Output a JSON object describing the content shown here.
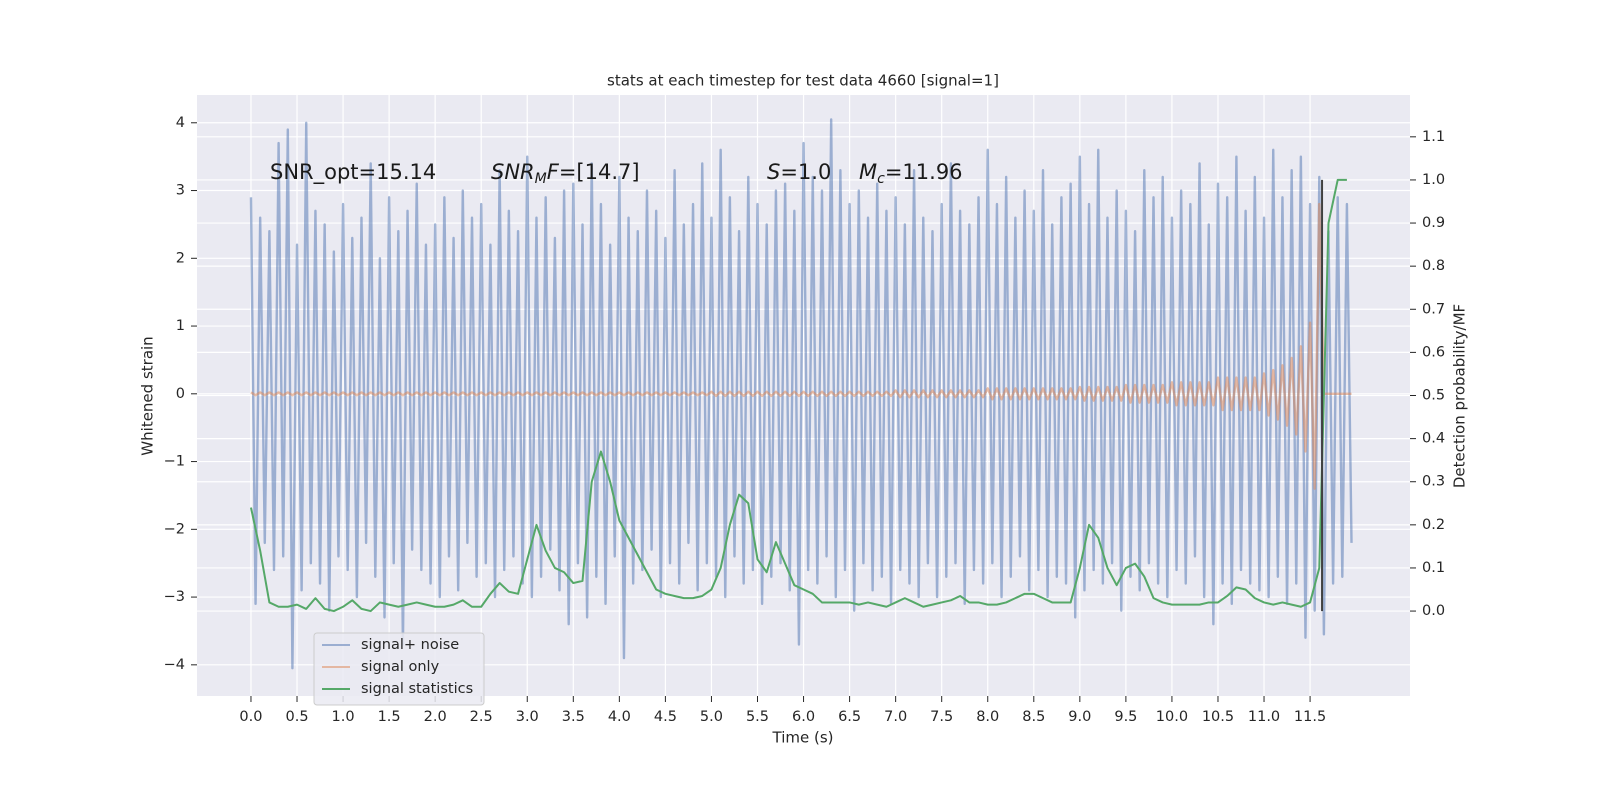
{
  "chart_data": {
    "type": "line",
    "title": "stats at each timestep for test data 4660 [signal=1]",
    "x_label": "Time (s)",
    "y_label": "Whitened strain",
    "y2_label": "Detection probability/MF",
    "xlim": [
      -0.586,
      12.585
    ],
    "ylim": [
      -4.46,
      4.41
    ],
    "y2lim": [
      -0.197,
      1.197
    ],
    "xticks": [
      {
        "value": 0,
        "label": "0.0"
      },
      0.5,
      {
        "value": 1,
        "label": "1.0"
      },
      1.5,
      {
        "value": 2,
        "label": "2.0"
      },
      2.5,
      {
        "value": 3,
        "label": "3.0"
      },
      3.5,
      {
        "value": 4,
        "label": "4.0"
      },
      4.5,
      {
        "value": 5,
        "label": "5.0"
      },
      5.5,
      {
        "value": 6,
        "label": "6.0"
      },
      6.5,
      {
        "value": 7,
        "label": "7.0"
      },
      7.5,
      {
        "value": 8,
        "label": "8.0"
      },
      8.5,
      {
        "value": 9,
        "label": "9.0"
      },
      9.5,
      {
        "value": 10,
        "label": "10.0"
      },
      10.5,
      {
        "value": 11,
        "label": "11.0"
      },
      11.5
    ],
    "yticks": [
      {
        "value": -4,
        "label": "−4"
      },
      {
        "value": -3,
        "label": "−3"
      },
      {
        "value": -2,
        "label": "−2"
      },
      {
        "value": -1,
        "label": "−1"
      },
      0,
      1,
      2,
      3,
      4
    ],
    "y2ticks": [
      {
        "value": 0,
        "label": "0.0"
      },
      0.1,
      0.2,
      0.3,
      0.4,
      0.5,
      0.6,
      0.7,
      0.8,
      0.9,
      {
        "value": 1,
        "label": "1.0"
      },
      1.1
    ],
    "grid": true,
    "legend": "lower left",
    "x": [
      0,
      0.05,
      0.1,
      0.15,
      0.2,
      0.25,
      0.3,
      0.35,
      0.4,
      0.45,
      0.5,
      0.55,
      0.6,
      0.65,
      0.7,
      0.75,
      0.8,
      0.85,
      0.9,
      0.95,
      1,
      1.05,
      1.1,
      1.15,
      1.2,
      1.25,
      1.3,
      1.35,
      1.4,
      1.45,
      1.5,
      1.55,
      1.6,
      1.65,
      1.7,
      1.75,
      1.8,
      1.85,
      1.9,
      1.95,
      2,
      2.05,
      2.1,
      2.15,
      2.2,
      2.25,
      2.3,
      2.35,
      2.4,
      2.45,
      2.5,
      2.55,
      2.6,
      2.65,
      2.7,
      2.75,
      2.8,
      2.85,
      2.9,
      2.95,
      3,
      3.05,
      3.1,
      3.15,
      3.2,
      3.25,
      3.3,
      3.35,
      3.4,
      3.45,
      3.5,
      3.55,
      3.6,
      3.65,
      3.7,
      3.75,
      3.8,
      3.85,
      3.9,
      3.95,
      4,
      4.05,
      4.1,
      4.15,
      4.2,
      4.25,
      4.3,
      4.35,
      4.4,
      4.45,
      4.5,
      4.55,
      4.6,
      4.65,
      4.7,
      4.75,
      4.8,
      4.85,
      4.9,
      4.95,
      5,
      5.05,
      5.1,
      5.15,
      5.2,
      5.25,
      5.3,
      5.35,
      5.4,
      5.45,
      5.5,
      5.55,
      5.6,
      5.65,
      5.7,
      5.75,
      5.8,
      5.85,
      5.9,
      5.95,
      6,
      6.05,
      6.1,
      6.15,
      6.2,
      6.25,
      6.3,
      6.35,
      6.4,
      6.45,
      6.5,
      6.55,
      6.6,
      6.65,
      6.7,
      6.75,
      6.8,
      6.85,
      6.9,
      6.95,
      7,
      7.05,
      7.1,
      7.15,
      7.2,
      7.25,
      7.3,
      7.35,
      7.4,
      7.45,
      7.5,
      7.55,
      7.6,
      7.65,
      7.7,
      7.75,
      7.8,
      7.85,
      7.9,
      7.95,
      8,
      8.05,
      8.1,
      8.15,
      8.2,
      8.25,
      8.3,
      8.35,
      8.4,
      8.45,
      8.5,
      8.55,
      8.6,
      8.65,
      8.7,
      8.75,
      8.8,
      8.85,
      8.9,
      8.95,
      9,
      9.05,
      9.1,
      9.15,
      9.2,
      9.25,
      9.3,
      9.35,
      9.4,
      9.45,
      9.5,
      9.55,
      9.6,
      9.65,
      9.7,
      9.75,
      9.8,
      9.85,
      9.9,
      9.95,
      10,
      10.05,
      10.1,
      10.15,
      10.2,
      10.25,
      10.3,
      10.35,
      10.4,
      10.45,
      10.5,
      10.55,
      10.6,
      10.65,
      10.7,
      10.75,
      10.8,
      10.85,
      10.9,
      10.95,
      11,
      11.05,
      11.1,
      11.15,
      11.2,
      11.25,
      11.3,
      11.35,
      11.4,
      11.45,
      11.5,
      11.55,
      11.6,
      11.65,
      11.7,
      11.75,
      11.8,
      11.85,
      11.9,
      11.95
    ],
    "series": [
      {
        "name": "signal+ noise",
        "color": "#4c72b0",
        "opacity": 0.5,
        "values": [
          2.9,
          -3.1,
          2.6,
          -2.2,
          2.4,
          -2.6,
          3.7,
          -2.4,
          3.9,
          -4.05,
          2.2,
          -2.9,
          4.0,
          -2.5,
          2.7,
          -2.8,
          2.5,
          -3.2,
          2.1,
          -2.4,
          2.8,
          -2.6,
          2.3,
          -3.0,
          2.6,
          -2.2,
          3.4,
          -2.7,
          2.0,
          -3.3,
          2.9,
          -2.5,
          2.4,
          -3.7,
          2.7,
          -2.3,
          3.1,
          -2.6,
          2.2,
          -2.8,
          2.5,
          -3.0,
          2.9,
          -2.4,
          2.3,
          -2.9,
          3.0,
          -2.2,
          2.6,
          -2.7,
          2.8,
          -2.5,
          2.2,
          -3.0,
          3.3,
          -2.6,
          2.7,
          -2.4,
          2.4,
          -2.8,
          3.5,
          -3.0,
          2.6,
          -2.7,
          2.9,
          -2.3,
          2.3,
          -2.9,
          3.0,
          -3.4,
          3.1,
          -2.5,
          2.5,
          -3.3,
          3.4,
          -2.7,
          2.8,
          -3.1,
          2.2,
          -2.4,
          3.2,
          -3.9,
          2.6,
          -2.8,
          2.4,
          -2.6,
          3.0,
          -2.3,
          2.7,
          -3.0,
          2.3,
          -2.5,
          3.3,
          -2.8,
          2.5,
          -2.2,
          2.8,
          -2.9,
          3.4,
          -2.5,
          2.6,
          -2.7,
          3.6,
          -3.0,
          2.9,
          -2.4,
          2.4,
          -2.8,
          3.2,
          -2.6,
          2.8,
          -3.1,
          2.5,
          -2.7,
          3.0,
          -2.5,
          3.1,
          -2.9,
          2.7,
          -3.7,
          3.7,
          -2.6,
          3.2,
          -2.8,
          3.0,
          -2.4,
          4.05,
          -3.0,
          3.3,
          -2.6,
          2.8,
          -3.2,
          3.0,
          -2.5,
          2.6,
          -2.9,
          3.1,
          -2.7,
          2.7,
          -3.1,
          2.9,
          -2.6,
          2.5,
          -2.8,
          3.3,
          -3.0,
          2.6,
          -2.5,
          2.4,
          -3.0,
          2.8,
          -2.7,
          3.4,
          -2.5,
          2.7,
          -3.1,
          2.5,
          -2.6,
          2.9,
          -2.8,
          3.6,
          -2.5,
          2.8,
          -3.0,
          3.2,
          -2.7,
          2.6,
          -2.4,
          3.0,
          -2.9,
          2.7,
          -2.6,
          3.3,
          -3.0,
          2.5,
          -2.7,
          2.9,
          -2.8,
          3.1,
          -3.3,
          3.5,
          -2.9,
          2.8,
          -2.6,
          3.6,
          -2.8,
          2.6,
          -2.5,
          3.0,
          -3.2,
          2.7,
          -2.7,
          2.4,
          -2.9,
          3.3,
          -2.5,
          2.9,
          -2.8,
          3.2,
          -3.0,
          2.6,
          -2.6,
          3.0,
          -2.8,
          2.8,
          -2.4,
          3.4,
          -3.0,
          2.5,
          -3.4,
          3.1,
          -2.8,
          2.9,
          -3.1,
          3.5,
          -2.6,
          2.7,
          -2.8,
          3.2,
          -2.9,
          2.6,
          -3.0,
          3.6,
          -2.7,
          2.9,
          -3.1,
          3.3,
          -2.8,
          3.5,
          -3.6,
          2.8,
          -3.2,
          3.2,
          -3.55,
          2.4,
          -2.8,
          2.9,
          -2.7,
          2.8,
          -2.2
        ]
      },
      {
        "name": "signal only",
        "color": "#dd8452",
        "opacity": 0.5,
        "values": [
          0.02,
          -0.02,
          0.02,
          -0.02,
          0.02,
          -0.02,
          0.02,
          -0.02,
          0.02,
          -0.02,
          0.02,
          -0.02,
          0.02,
          -0.02,
          0.02,
          -0.02,
          0.02,
          -0.02,
          0.02,
          -0.02,
          0.02,
          -0.02,
          0.02,
          -0.02,
          0.02,
          -0.02,
          0.02,
          -0.02,
          0.02,
          -0.02,
          0.02,
          -0.02,
          0.02,
          -0.02,
          0.02,
          -0.02,
          0.02,
          -0.02,
          0.02,
          -0.02,
          0.02,
          -0.02,
          0.02,
          -0.02,
          0.02,
          -0.02,
          0.02,
          -0.02,
          0.02,
          -0.02,
          0.02,
          -0.02,
          0.02,
          -0.02,
          0.02,
          -0.02,
          0.02,
          -0.02,
          0.02,
          -0.02,
          0.02,
          -0.02,
          0.02,
          -0.02,
          0.02,
          -0.02,
          0.02,
          -0.02,
          0.02,
          -0.02,
          0.02,
          -0.02,
          0.02,
          -0.02,
          0.02,
          -0.02,
          0.02,
          -0.02,
          0.02,
          -0.02,
          0.02,
          -0.02,
          0.02,
          -0.02,
          0.02,
          -0.02,
          0.02,
          -0.02,
          0.02,
          -0.02,
          0.02,
          -0.02,
          0.02,
          -0.02,
          0.02,
          -0.02,
          0.02,
          -0.02,
          0.02,
          -0.02,
          0.03,
          -0.03,
          0.03,
          -0.03,
          0.03,
          -0.03,
          0.03,
          -0.03,
          0.03,
          -0.03,
          0.03,
          -0.03,
          0.03,
          -0.03,
          0.03,
          -0.03,
          0.03,
          -0.03,
          0.03,
          -0.03,
          0.03,
          -0.03,
          0.03,
          -0.03,
          0.03,
          -0.03,
          0.03,
          -0.03,
          0.03,
          -0.03,
          0.03,
          -0.03,
          0.03,
          -0.03,
          0.03,
          -0.03,
          0.03,
          -0.03,
          0.03,
          -0.03,
          0.05,
          -0.05,
          0.05,
          -0.05,
          0.05,
          -0.05,
          0.05,
          -0.05,
          0.05,
          -0.05,
          0.05,
          -0.05,
          0.05,
          -0.05,
          0.05,
          -0.05,
          0.05,
          -0.05,
          0.05,
          -0.05,
          0.08,
          -0.08,
          0.08,
          -0.08,
          0.08,
          -0.08,
          0.08,
          -0.08,
          0.08,
          -0.08,
          0.08,
          -0.08,
          0.08,
          -0.08,
          0.08,
          -0.08,
          0.08,
          -0.08,
          0.08,
          -0.08,
          0.1,
          -0.1,
          0.1,
          -0.1,
          0.1,
          -0.1,
          0.1,
          -0.1,
          0.1,
          -0.1,
          0.13,
          -0.13,
          0.13,
          -0.13,
          0.13,
          -0.13,
          0.13,
          -0.13,
          0.13,
          -0.13,
          0.17,
          -0.17,
          0.17,
          -0.17,
          0.17,
          -0.17,
          0.17,
          -0.17,
          0.17,
          -0.17,
          0.24,
          -0.24,
          0.24,
          -0.24,
          0.24,
          -0.24,
          0.24,
          -0.24,
          0.24,
          -0.24,
          0.3,
          -0.32,
          0.35,
          -0.38,
          0.42,
          -0.47,
          0.53,
          -0.6,
          0.7,
          -0.85,
          1.05,
          -1.4,
          2.8,
          0,
          0,
          0,
          0,
          0,
          0,
          0
        ]
      },
      {
        "name": "signal statistics",
        "color": "#55a868",
        "opacity": 1,
        "axis": "y2",
        "x": [
          0,
          0.1,
          0.2,
          0.3,
          0.4,
          0.5,
          0.6,
          0.7,
          0.8,
          0.9,
          1,
          1.1,
          1.2,
          1.3,
          1.4,
          1.5,
          1.6,
          1.7,
          1.8,
          1.9,
          2,
          2.1,
          2.2,
          2.3,
          2.4,
          2.5,
          2.6,
          2.7,
          2.8,
          2.9,
          3,
          3.1,
          3.2,
          3.3,
          3.4,
          3.5,
          3.6,
          3.7,
          3.8,
          3.9,
          4,
          4.1,
          4.2,
          4.3,
          4.4,
          4.5,
          4.6,
          4.7,
          4.8,
          4.9,
          5,
          5.1,
          5.2,
          5.3,
          5.4,
          5.5,
          5.6,
          5.7,
          5.8,
          5.9,
          6,
          6.1,
          6.2,
          6.3,
          6.4,
          6.5,
          6.6,
          6.7,
          6.8,
          6.9,
          7,
          7.1,
          7.2,
          7.3,
          7.4,
          7.5,
          7.6,
          7.7,
          7.8,
          7.9,
          8,
          8.1,
          8.2,
          8.3,
          8.4,
          8.5,
          8.6,
          8.7,
          8.8,
          8.9,
          9,
          9.1,
          9.2,
          9.3,
          9.4,
          9.5,
          9.6,
          9.7,
          9.8,
          9.9,
          10,
          10.1,
          10.2,
          10.3,
          10.4,
          10.5,
          10.6,
          10.7,
          10.8,
          10.9,
          11,
          11.1,
          11.2,
          11.3,
          11.4,
          11.5,
          11.6,
          11.7,
          11.8,
          11.9
        ],
        "values": [
          0.24,
          0.14,
          0.02,
          0.01,
          0.01,
          0.015,
          0.005,
          0.03,
          0.005,
          0.0,
          0.01,
          0.025,
          0.005,
          0.0,
          0.02,
          0.015,
          0.01,
          0.015,
          0.02,
          0.015,
          0.01,
          0.01,
          0.015,
          0.025,
          0.01,
          0.01,
          0.04,
          0.065,
          0.045,
          0.04,
          0.12,
          0.2,
          0.14,
          0.1,
          0.09,
          0.065,
          0.07,
          0.3,
          0.37,
          0.3,
          0.21,
          0.17,
          0.13,
          0.09,
          0.05,
          0.04,
          0.035,
          0.03,
          0.03,
          0.035,
          0.05,
          0.1,
          0.2,
          0.27,
          0.25,
          0.12,
          0.09,
          0.16,
          0.11,
          0.06,
          0.05,
          0.04,
          0.02,
          0.02,
          0.02,
          0.02,
          0.015,
          0.02,
          0.015,
          0.01,
          0.02,
          0.03,
          0.02,
          0.01,
          0.015,
          0.02,
          0.025,
          0.035,
          0.02,
          0.02,
          0.015,
          0.015,
          0.02,
          0.03,
          0.04,
          0.04,
          0.03,
          0.02,
          0.02,
          0.02,
          0.1,
          0.2,
          0.17,
          0.1,
          0.06,
          0.1,
          0.11,
          0.08,
          0.03,
          0.02,
          0.015,
          0.015,
          0.015,
          0.015,
          0.02,
          0.02,
          0.035,
          0.055,
          0.05,
          0.03,
          0.02,
          0.015,
          0.02,
          0.015,
          0.01,
          0.02,
          0.1,
          0.9,
          1.0,
          1.0
        ]
      }
    ],
    "vline": {
      "x": 11.63,
      "ymin": 0,
      "ymax": 1,
      "axis": "y2",
      "color": "#404040"
    },
    "annotations": [
      {
        "parts": [
          {
            "text": "SNR_opt=15.14"
          }
        ]
      },
      {
        "parts": [
          {
            "text": "SNR",
            "italic": true
          },
          {
            "text": "M",
            "italic": true,
            "sub": true
          },
          {
            "text": "F",
            "italic": true
          },
          {
            "text": "=[14.7]"
          }
        ]
      },
      {
        "parts": [
          {
            "text": "S",
            "italic": true
          },
          {
            "text": "=1.0"
          }
        ]
      },
      {
        "parts": [
          {
            "text": "M",
            "italic": true
          },
          {
            "text": "c",
            "italic": true,
            "sub": true
          },
          {
            "text": "=11.96"
          }
        ]
      }
    ]
  }
}
